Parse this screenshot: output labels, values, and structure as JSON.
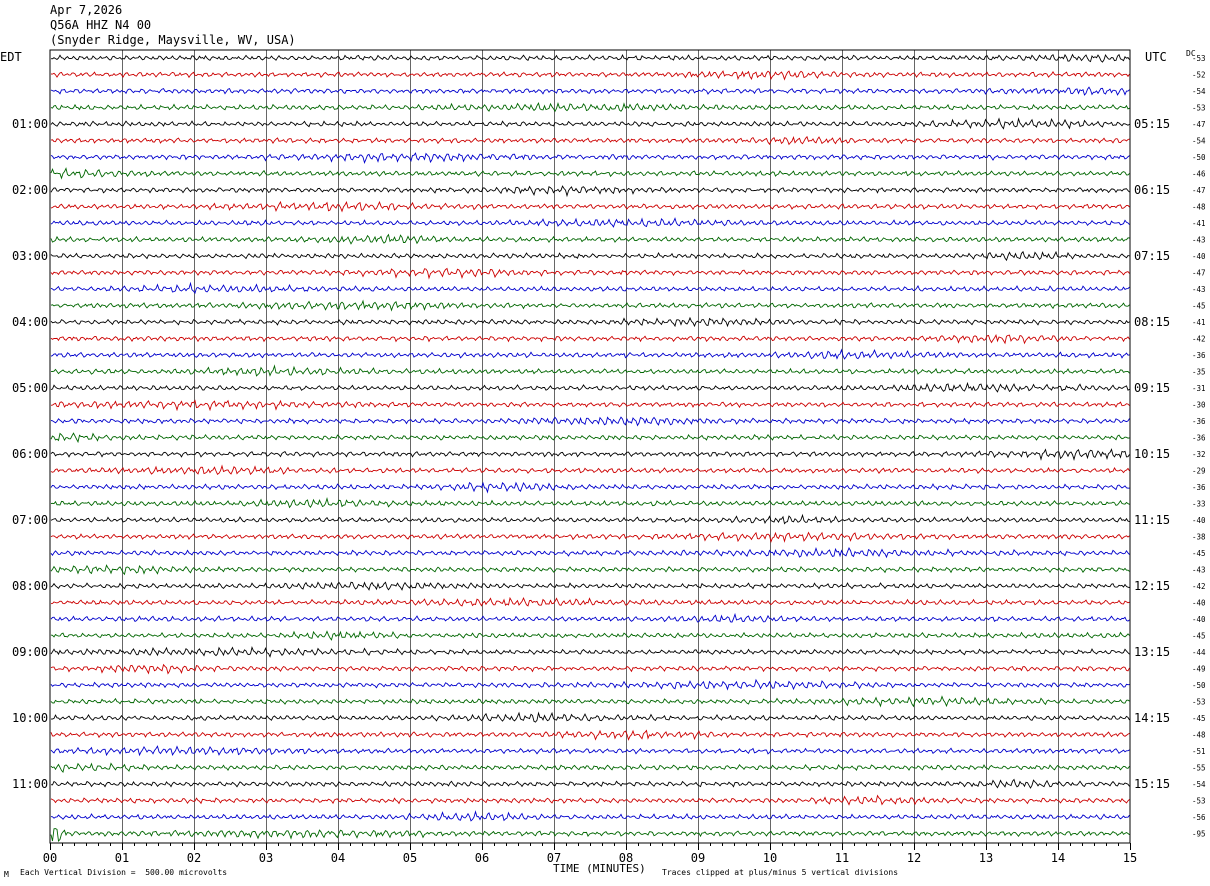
{
  "header": {
    "date": "Apr 7,2026",
    "channel": "Q56A HHZ N4 00",
    "location": "(Snyder Ridge, Maysville, WV, USA)"
  },
  "footer": {
    "scale_note": "Each Vertical Division =  500.00 microvolts",
    "clip_note": "Traces clipped at plus/minus 5 vertical divisions",
    "corner_mark": "M"
  },
  "colors": {
    "trace_cycle": [
      "#000000",
      "#cc0000",
      "#0000cc",
      "#006600"
    ],
    "grid": "#000000"
  },
  "chart_data": {
    "type": "line",
    "title": "",
    "xlabel": "TIME (MINUTES)",
    "left_axis_label": "EDT",
    "right_axis_label": "UTC",
    "dc_label": "DC",
    "x_ticks": [
      "00",
      "01",
      "02",
      "03",
      "04",
      "05",
      "06",
      "07",
      "08",
      "09",
      "10",
      "11",
      "12",
      "13",
      "14",
      "15"
    ],
    "xlim": [
      0,
      15
    ],
    "rows_per_hour": 4,
    "left_hour_labels": [
      "01:00",
      "02:00",
      "03:00",
      "04:00",
      "05:00",
      "06:00",
      "07:00",
      "08:00",
      "09:00",
      "10:00",
      "11:00"
    ],
    "right_hour_labels": [
      "05:15",
      "06:15",
      "07:15",
      "08:15",
      "09:15",
      "10:15",
      "11:15",
      "12:15",
      "13:15",
      "14:15",
      "15:15"
    ],
    "first_label_row": 4,
    "dc_offsets": [
      -53,
      -52,
      -54,
      -53,
      -47,
      -54,
      -50,
      -46,
      -47,
      -48,
      -41,
      -43,
      -40,
      -47,
      -43,
      -45,
      -41,
      -42,
      -36,
      -35,
      -31,
      -30,
      -36,
      -36,
      -32,
      -29,
      -36,
      -33,
      -40,
      -38,
      -45,
      -43,
      -42,
      -40,
      -40,
      -45,
      -44,
      -49,
      -50,
      -53,
      -45,
      -48,
      -51,
      -55,
      -54,
      -53,
      -56,
      -95
    ]
  }
}
